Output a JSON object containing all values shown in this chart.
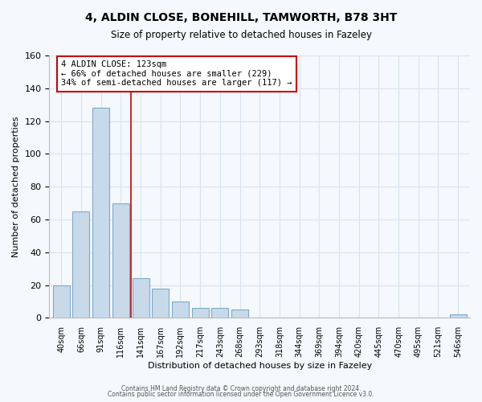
{
  "title": "4, ALDIN CLOSE, BONEHILL, TAMWORTH, B78 3HT",
  "subtitle": "Size of property relative to detached houses in Fazeley",
  "xlabel": "Distribution of detached houses by size in Fazeley",
  "ylabel": "Number of detached properties",
  "bar_color": "#c8daea",
  "bar_edge_color": "#7aaac8",
  "background_color": "#f5f8fc",
  "grid_color": "#d8e4f0",
  "categories": [
    "40sqm",
    "66sqm",
    "91sqm",
    "116sqm",
    "141sqm",
    "167sqm",
    "192sqm",
    "217sqm",
    "243sqm",
    "268sqm",
    "293sqm",
    "318sqm",
    "344sqm",
    "369sqm",
    "394sqm",
    "420sqm",
    "445sqm",
    "470sqm",
    "495sqm",
    "521sqm",
    "546sqm"
  ],
  "values": [
    20,
    65,
    128,
    70,
    24,
    18,
    10,
    6,
    6,
    5,
    0,
    0,
    0,
    0,
    0,
    0,
    0,
    0,
    0,
    0,
    2
  ],
  "vline_x": 3.5,
  "vline_color": "#cc0000",
  "annotation_line1": "4 ALDIN CLOSE: 123sqm",
  "annotation_line2": "← 66% of detached houses are smaller (229)",
  "annotation_line3": "34% of semi-detached houses are larger (117) →",
  "annotation_box_color": "#ffffff",
  "annotation_box_edge_color": "#cc0000",
  "ylim": [
    0,
    160
  ],
  "yticks": [
    0,
    20,
    40,
    60,
    80,
    100,
    120,
    140,
    160
  ],
  "footer1": "Contains HM Land Registry data © Crown copyright and database right 2024.",
  "footer2": "Contains public sector information licensed under the Open Government Licence v3.0."
}
